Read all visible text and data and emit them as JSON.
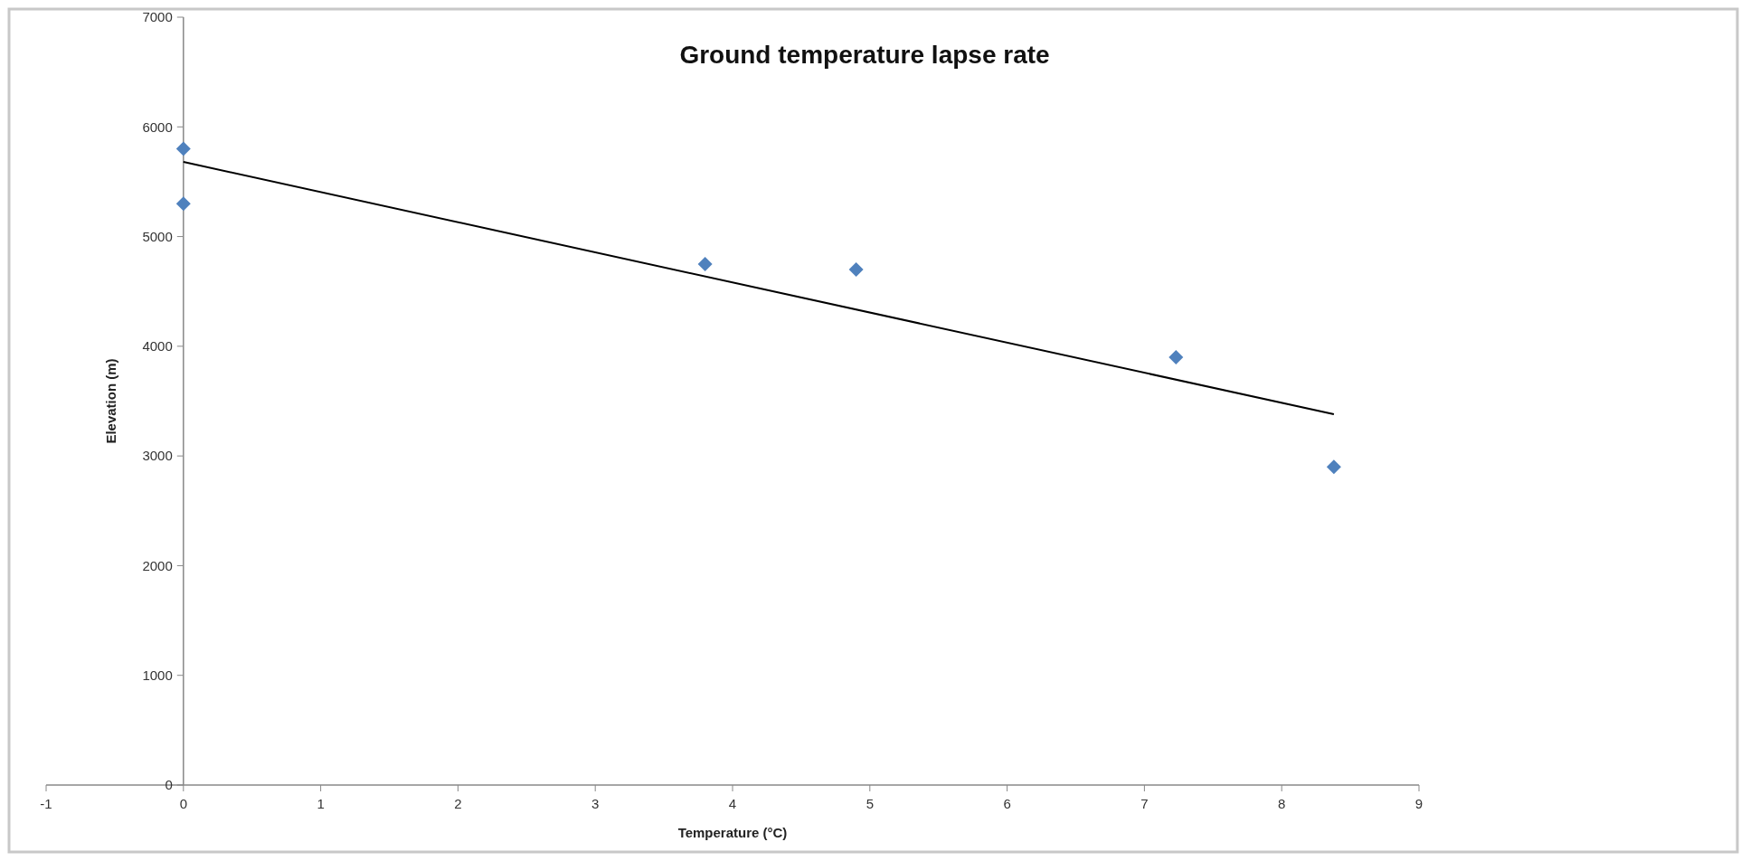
{
  "chart_data": {
    "type": "scatter",
    "title": "Ground temperature lapse rate",
    "xlabel": "Temperature (°C)",
    "ylabel": "Elevation (m)",
    "xlim": [
      -1,
      9
    ],
    "xticks": [
      -1,
      0,
      1,
      2,
      3,
      4,
      5,
      6,
      7,
      8,
      9
    ],
    "ylim": [
      0,
      7000
    ],
    "yticks": [
      0,
      1000,
      2000,
      3000,
      4000,
      5000,
      6000,
      7000
    ],
    "grid": false,
    "series": [
      {
        "color": "#4f81bd",
        "marker": "diamond",
        "x": [
          0,
          0,
          3.8,
          4.9,
          7.23,
          8.38
        ],
        "values": [
          5800,
          5300,
          4750,
          4700,
          3900,
          2900
        ]
      },
      {
        "type": "line",
        "color": "#000000",
        "marker": "none",
        "line_style": "solid",
        "x": [
          0,
          8.38
        ],
        "values": [
          5680,
          3380
        ]
      }
    ]
  }
}
